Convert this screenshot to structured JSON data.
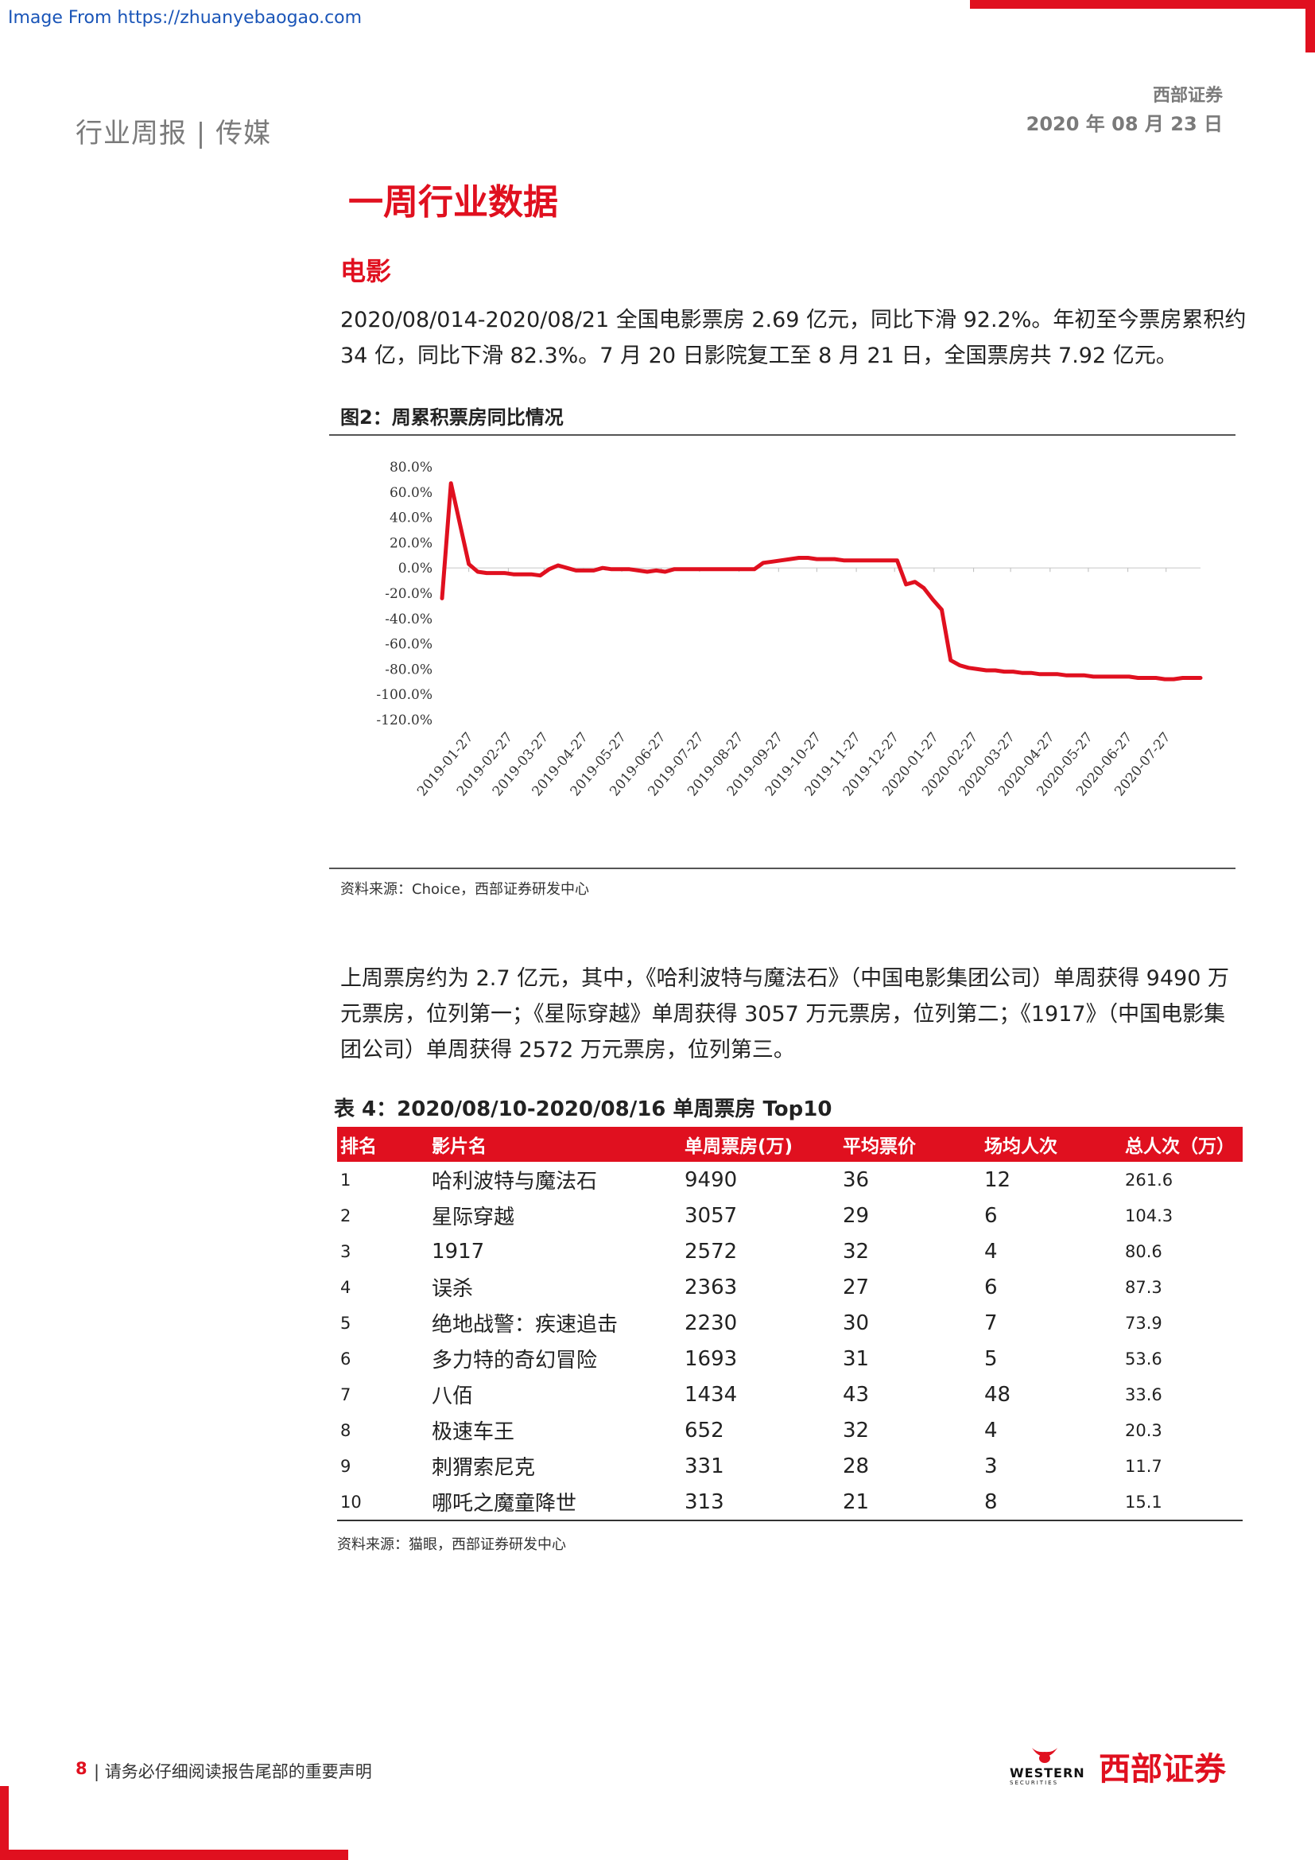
{
  "watermark": "Image From https://zhuanyebaogao.com",
  "header": {
    "left": "行业周报 | 传媒",
    "firm": "西部证券",
    "date": "2020 年 08 月 23 日"
  },
  "section_title": "一周行业数据",
  "sub_title": "电影",
  "para1": "2020/08/014-2020/08/21 全国电影票房 2.69 亿元，同比下滑 92.2%。年初至今票房累积约 34 亿，同比下滑 82.3%。7 月 20 日影院复工至 8 月 21 日，全国票房共 7.92 亿元。",
  "figure": {
    "caption": "图2：周累积票房同比情况",
    "source": "资料来源：Choice，西部证券研发中心"
  },
  "chart_data": {
    "type": "line",
    "title": "",
    "xlabel": "",
    "ylabel": "",
    "ylim": [
      -120,
      80
    ],
    "yticks": [
      "80.0%",
      "60.0%",
      "40.0%",
      "20.0%",
      "0.0%",
      "-20.0%",
      "-40.0%",
      "-60.0%",
      "-80.0%",
      "-100.0%",
      "-120.0%"
    ],
    "xticks": [
      "2019-01-27",
      "2019-02-27",
      "2019-03-27",
      "2019-04-27",
      "2019-05-27",
      "2019-06-27",
      "2019-07-27",
      "2019-08-27",
      "2019-09-27",
      "2019-10-27",
      "2019-11-27",
      "2019-12-27",
      "2020-01-27",
      "2020-02-27",
      "2020-03-27",
      "2020-04-27",
      "2020-05-27",
      "2020-06-27",
      "2020-07-27"
    ],
    "color": "#e0101f",
    "series": [
      {
        "x": [
          "2019-01-06",
          "2019-01-13",
          "2019-01-20",
          "2019-01-27",
          "2019-02-03",
          "2019-02-10",
          "2019-02-17",
          "2019-02-24",
          "2019-03-03",
          "2019-03-10",
          "2019-03-17",
          "2019-03-24",
          "2019-03-31",
          "2019-04-07",
          "2019-04-14",
          "2019-04-21",
          "2019-04-28",
          "2019-05-05",
          "2019-05-12",
          "2019-05-19",
          "2019-05-26",
          "2019-06-02",
          "2019-06-09",
          "2019-06-16",
          "2019-06-23",
          "2019-06-30",
          "2019-07-07",
          "2019-07-14",
          "2019-07-21",
          "2019-07-28",
          "2019-08-04",
          "2019-08-11",
          "2019-08-18",
          "2019-08-25",
          "2019-09-01",
          "2019-09-08",
          "2019-09-15",
          "2019-09-22",
          "2019-09-29",
          "2019-10-06",
          "2019-10-13",
          "2019-10-20",
          "2019-10-27",
          "2019-11-03",
          "2019-11-10",
          "2019-11-17",
          "2019-11-24",
          "2019-12-01",
          "2019-12-08",
          "2019-12-15",
          "2019-12-22",
          "2019-12-29",
          "2020-01-05",
          "2020-01-12",
          "2020-01-19",
          "2020-01-26",
          "2020-02-02",
          "2020-02-09",
          "2020-02-16",
          "2020-02-23",
          "2020-03-01",
          "2020-03-08",
          "2020-03-15",
          "2020-03-22",
          "2020-03-29",
          "2020-04-05",
          "2020-04-12",
          "2020-04-19",
          "2020-04-26",
          "2020-05-03",
          "2020-05-10",
          "2020-05-17",
          "2020-05-24",
          "2020-05-31",
          "2020-06-07",
          "2020-06-14",
          "2020-06-21",
          "2020-06-28",
          "2020-07-05",
          "2020-07-12",
          "2020-07-19",
          "2020-07-26",
          "2020-08-02",
          "2020-08-09",
          "2020-08-16",
          "2020-08-23"
        ],
        "y": [
          -24,
          67,
          35,
          3,
          -3,
          -4,
          -4,
          -4,
          -5,
          -5,
          -5,
          -6,
          -1,
          2,
          0,
          -2,
          -2,
          -2,
          0,
          -1,
          -1,
          -1,
          -2,
          -3,
          -2,
          -3,
          -1,
          -1,
          -1,
          -1,
          -1,
          -1,
          -1,
          -1,
          -1,
          -1,
          4,
          5,
          6,
          7,
          8,
          8,
          7,
          7,
          7,
          6,
          6,
          6,
          6,
          6,
          6,
          6,
          -13,
          -11,
          -16,
          -25,
          -33,
          -73,
          -77,
          -79,
          -80,
          -81,
          -81,
          -82,
          -82,
          -83,
          -83,
          -84,
          -84,
          -84,
          -85,
          -85,
          -85,
          -86,
          -86,
          -86,
          -86,
          -86,
          -87,
          -87,
          -87,
          -88,
          -88,
          -87,
          -87,
          -87
        ]
      }
    ]
  },
  "para2": "上周票房约为 2.7 亿元，其中，《哈利波特与魔法石》（中国电影集团公司）单周获得 9490 万元票房，位列第一；《星际穿越》单周获得 3057 万元票房，位列第二；《1917》（中国电影集团公司）单周获得 2572 万元票房，位列第三。",
  "table": {
    "caption": "表 4：2020/08/10-2020/08/16 单周票房 Top10",
    "headers": [
      "排名",
      "影片名",
      "单周票房(万)",
      "平均票价",
      "场均人次",
      "总人次（万）"
    ],
    "rows": [
      [
        "1",
        "哈利波特与魔法石",
        "9490",
        "36",
        "12",
        "261.6"
      ],
      [
        "2",
        "星际穿越",
        "3057",
        "29",
        "6",
        "104.3"
      ],
      [
        "3",
        "1917",
        "2572",
        "32",
        "4",
        "80.6"
      ],
      [
        "4",
        "误杀",
        "2363",
        "27",
        "6",
        "87.3"
      ],
      [
        "5",
        "绝地战警：疾速追击",
        "2230",
        "30",
        "7",
        "73.9"
      ],
      [
        "6",
        "多力特的奇幻冒险",
        "1693",
        "31",
        "5",
        "53.6"
      ],
      [
        "7",
        "八佰",
        "1434",
        "43",
        "48",
        "33.6"
      ],
      [
        "8",
        "极速车王",
        "652",
        "32",
        "4",
        "20.3"
      ],
      [
        "9",
        "刺猬索尼克",
        "331",
        "28",
        "3",
        "11.7"
      ],
      [
        "10",
        "哪吒之魔童降世",
        "313",
        "21",
        "8",
        "15.1"
      ]
    ],
    "source": "资料来源：猫眼，西部证券研发中心"
  },
  "footer": {
    "page": "8",
    "text": "|  请务必仔细阅读报告尾部的重要声明",
    "logo_brand": "西部证券",
    "logo_western": "WESTERN",
    "logo_securities": "SECURITIES"
  }
}
